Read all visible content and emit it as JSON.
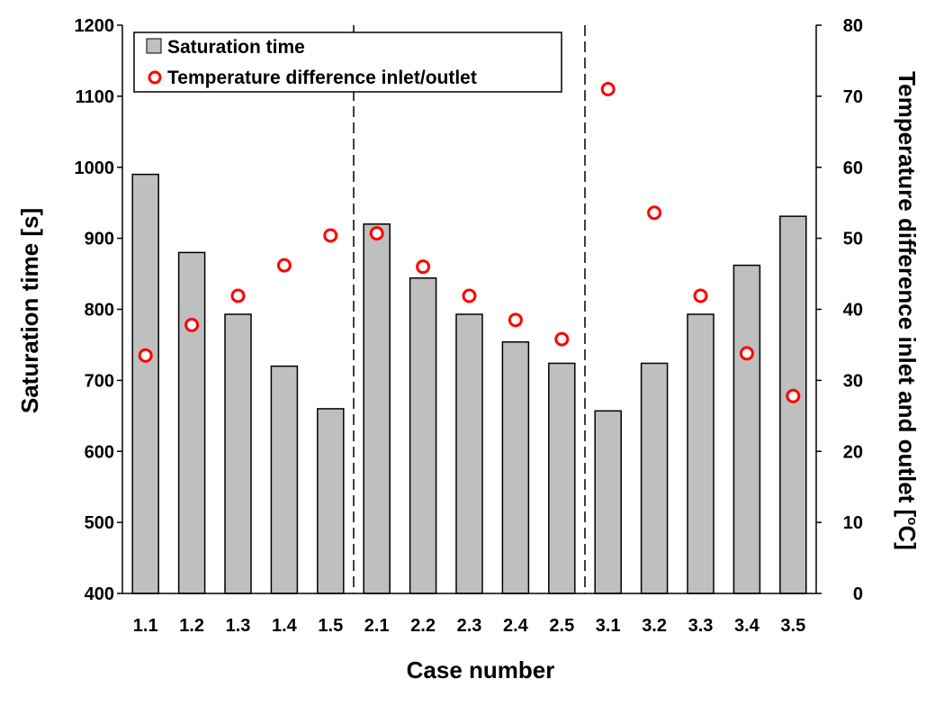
{
  "chart_data": {
    "type": "bar",
    "categories": [
      "1.1",
      "1.2",
      "1.3",
      "1.4",
      "1.5",
      "2.1",
      "2.2",
      "2.3",
      "2.4",
      "2.5",
      "3.1",
      "3.2",
      "3.3",
      "3.4",
      "3.5"
    ],
    "series": [
      {
        "name": "Saturation time",
        "type": "bar",
        "axis": "left",
        "values": [
          990,
          880,
          793,
          720,
          660,
          920,
          844,
          793,
          754,
          724,
          657,
          724,
          793,
          862,
          931
        ]
      },
      {
        "name": "Temperature difference inlet/outlet",
        "type": "scatter",
        "axis": "right",
        "values": [
          33.5,
          37.8,
          41.9,
          46.2,
          50.4,
          50.7,
          46.0,
          41.9,
          38.5,
          35.8,
          71.0,
          53.6,
          41.9,
          33.8,
          27.8
        ]
      }
    ],
    "xlabel": "Case number",
    "ylabel": "Saturation time [s]",
    "y2label": "Temperature difference inlet and outlet [",
    "y2label_unit": "o",
    "y2label_end": "C]",
    "ylim": [
      400,
      1200
    ],
    "y2lim": [
      0,
      80
    ],
    "yticks": [
      400,
      500,
      600,
      700,
      800,
      900,
      1000,
      1100,
      1200
    ],
    "y2ticks": [
      0,
      10,
      20,
      30,
      40,
      50,
      60,
      70,
      80
    ],
    "group_separators_after": [
      "1.5",
      "2.5"
    ],
    "legend_position": "top-left",
    "grid": false,
    "colors": {
      "bar_fill": "#bfbfbf",
      "bar_stroke": "#000000",
      "marker_stroke": "#ff0000",
      "marker_fill": "#ffffff"
    }
  }
}
